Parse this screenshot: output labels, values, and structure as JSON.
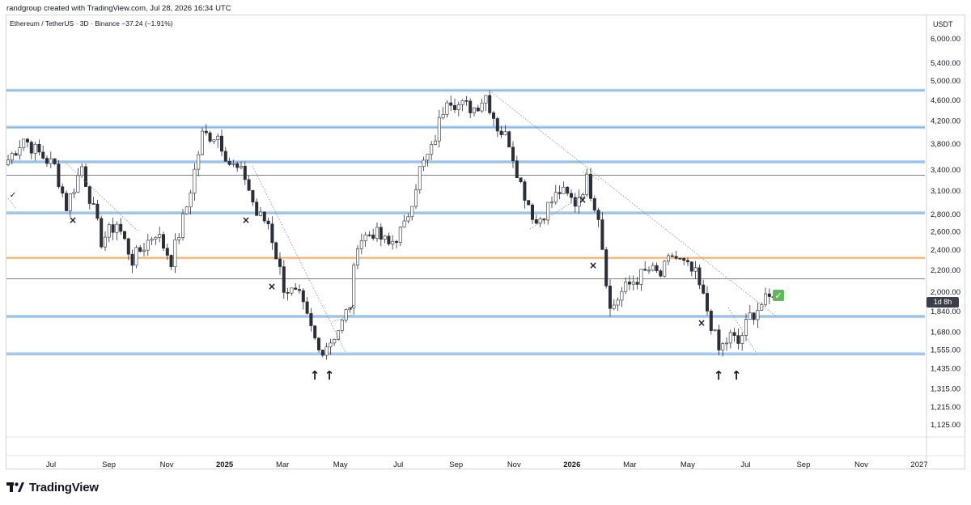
{
  "header": {
    "title": "randgroup created with TradingView.com, Jul 28, 2026 16:34 UTC"
  },
  "symbol": {
    "label": "Ethereum / TetherUS · 3D · Binance  −37.24 (−1.91%)"
  },
  "axis": {
    "currency": "USDT"
  },
  "price_tag": "1d 8h",
  "brand": {
    "name": "TradingView"
  },
  "colors": {
    "support_band": "#9fc5ec",
    "orange_level": "#f0a04b",
    "grey_level": "#555555",
    "candle": "#2a2e39",
    "check_green": "#5fb85b"
  },
  "chart_data": {
    "type": "candlestick",
    "title": "Ethereum / TetherUS · 3D · Binance",
    "ylabel": "USDT",
    "y_scale": "log",
    "ylim": [
      1050,
      6800
    ],
    "y_ticks": [
      6000,
      5400,
      5000,
      4600,
      4200,
      3800,
      3400,
      3100,
      2800,
      2600,
      2400,
      2200,
      2000,
      1840,
      1680,
      1555,
      1435,
      1315,
      1215,
      1125
    ],
    "y_tick_labels": [
      "6,000.00",
      "5,400.00",
      "5,000.00",
      "4,600.00",
      "4,200.00",
      "3,800.00",
      "3,400.00",
      "3,100.00",
      "2,800.00",
      "2,600.00",
      "2,400.00",
      "2,200.00",
      "2,000.00",
      "1,840.00",
      "1,680.00",
      "1,555.00",
      "1,435.00",
      "1,315.00",
      "1,215.00",
      "1,125.00"
    ],
    "x_ticks": [
      "Jul",
      "Sep",
      "Nov",
      "2025",
      "Mar",
      "May",
      "Jul",
      "Sep",
      "Nov",
      "2026",
      "Mar",
      "May",
      "Jul",
      "Sep",
      "Nov",
      "2027"
    ],
    "x_bold_ticks": [
      "2025",
      "2026"
    ],
    "horizontal_levels": [
      {
        "price": 4800,
        "kind": "band"
      },
      {
        "price": 4090,
        "kind": "band"
      },
      {
        "price": 3520,
        "kind": "band"
      },
      {
        "price": 3320,
        "kind": "line"
      },
      {
        "price": 2820,
        "kind": "band"
      },
      {
        "price": 2320,
        "kind": "orange"
      },
      {
        "price": 2120,
        "kind": "line"
      },
      {
        "price": 1800,
        "kind": "band"
      },
      {
        "price": 1530,
        "kind": "band"
      }
    ],
    "anchors": [
      [
        0,
        3550
      ],
      [
        4,
        3900
      ],
      [
        7,
        3700
      ],
      [
        12,
        3450
      ],
      [
        15,
        2900
      ],
      [
        19,
        3450
      ],
      [
        24,
        2500
      ],
      [
        28,
        2700
      ],
      [
        32,
        2300
      ],
      [
        38,
        2600
      ],
      [
        42,
        2300
      ],
      [
        46,
        2900
      ],
      [
        50,
        3950
      ],
      [
        54,
        3950
      ],
      [
        57,
        3500
      ],
      [
        61,
        3300
      ],
      [
        64,
        2800
      ],
      [
        67,
        2700
      ],
      [
        71,
        2050
      ],
      [
        75,
        1950
      ],
      [
        80,
        1550
      ],
      [
        83,
        1620
      ],
      [
        86,
        1750
      ],
      [
        88,
        1900
      ],
      [
        90,
        2500
      ],
      [
        94,
        2600
      ],
      [
        98,
        2450
      ],
      [
        102,
        2650
      ],
      [
        106,
        3400
      ],
      [
        109,
        3700
      ],
      [
        113,
        4700
      ],
      [
        116,
        4500
      ],
      [
        120,
        4450
      ],
      [
        123,
        4700
      ],
      [
        126,
        4100
      ],
      [
        129,
        3850
      ],
      [
        132,
        3200
      ],
      [
        136,
        2700
      ],
      [
        139,
        2900
      ],
      [
        142,
        3100
      ],
      [
        146,
        2950
      ],
      [
        149,
        3250
      ],
      [
        152,
        2800
      ],
      [
        155,
        1850
      ],
      [
        158,
        2000
      ],
      [
        161,
        2100
      ],
      [
        165,
        2200
      ],
      [
        168,
        2150
      ],
      [
        171,
        2350
      ],
      [
        174,
        2250
      ],
      [
        177,
        2150
      ],
      [
        180,
        1850
      ],
      [
        183,
        1550
      ],
      [
        186,
        1650
      ],
      [
        188,
        1600
      ],
      [
        191,
        1800
      ],
      [
        194,
        1900
      ],
      [
        197,
        1960
      ]
    ],
    "total_candles": 198,
    "last_price": 1960,
    "annotations": [
      "×",
      "×",
      "×",
      "×",
      "×",
      "×",
      "✓",
      "✓",
      "✓",
      "↑",
      "↑",
      "↑",
      "↑"
    ]
  }
}
